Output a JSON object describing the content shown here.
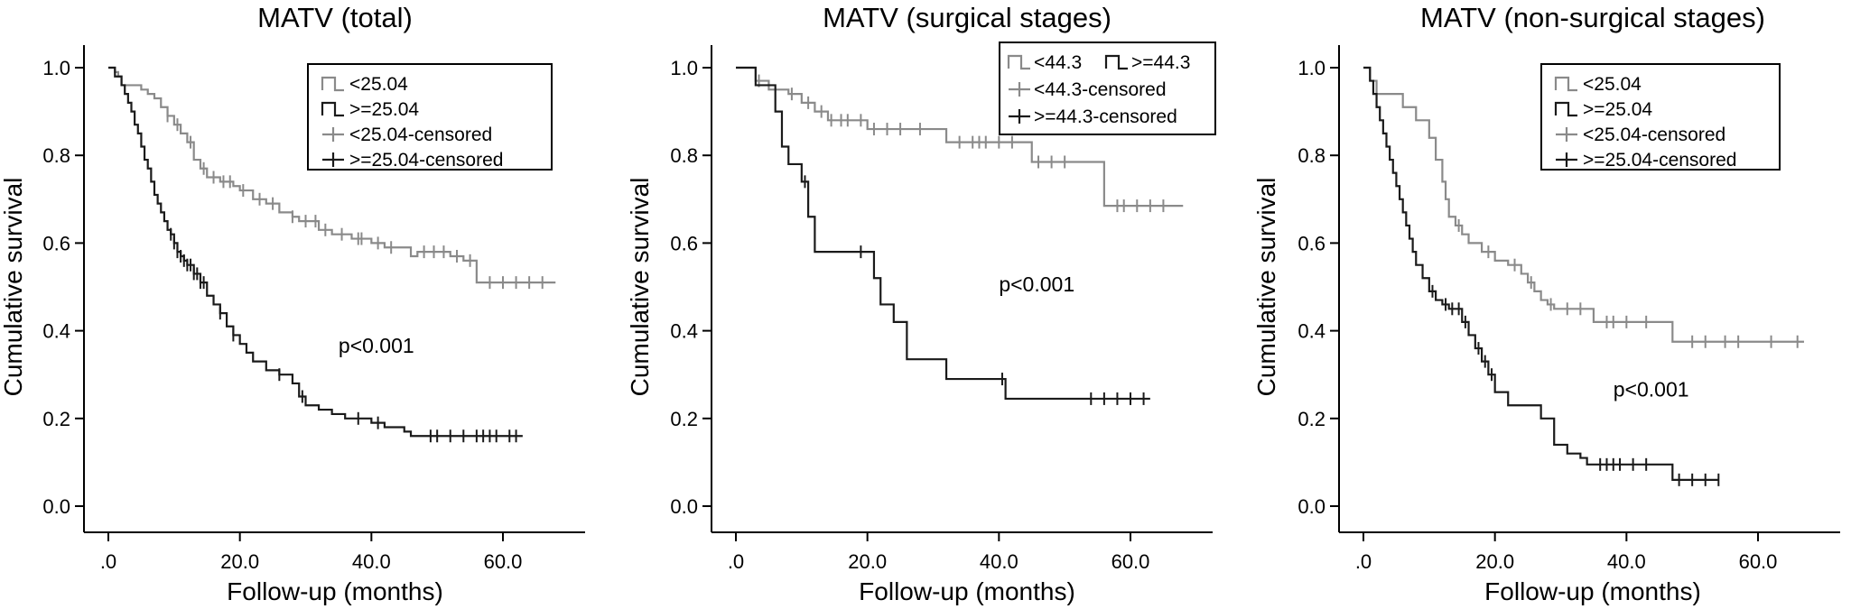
{
  "chart_data": [
    {
      "type": "line",
      "title": "MATV (total)",
      "xlabel": "Follow-up (months)",
      "ylabel": "Cumulative survival",
      "xlim": [
        0,
        70
      ],
      "ylim": [
        0,
        1.0
      ],
      "x_ticks": [
        0,
        20,
        40,
        60
      ],
      "x_tick_labels": [
        ".0",
        "20.0",
        "40.0",
        "60.0"
      ],
      "y_ticks": [
        0,
        0.2,
        0.4,
        0.6,
        0.8,
        1.0
      ],
      "y_tick_labels": [
        "0.0",
        "0.2",
        "0.4",
        "0.6",
        "0.8",
        "1.0"
      ],
      "grid": false,
      "legend_position": "top-right",
      "legend_layout": "list",
      "legend": [
        "<25.04",
        ">=25.04",
        "<25.04-censored",
        ">=25.04-censored"
      ],
      "annotation": "p<0.001",
      "annotation_pos": [
        35,
        0.35
      ],
      "series": [
        {
          "name": "<25.04",
          "color": "#8a8a8a",
          "x": [
            0,
            1,
            1.5,
            2,
            5,
            6,
            7,
            8,
            9,
            10,
            11,
            12,
            13,
            14,
            15,
            17,
            19,
            20,
            22,
            24,
            26,
            28,
            29,
            32,
            34,
            37,
            40,
            42,
            46,
            47,
            52,
            54,
            56,
            68
          ],
          "y": [
            1.0,
            0.99,
            0.98,
            0.96,
            0.95,
            0.94,
            0.93,
            0.91,
            0.89,
            0.87,
            0.85,
            0.83,
            0.79,
            0.77,
            0.75,
            0.74,
            0.73,
            0.72,
            0.7,
            0.69,
            0.67,
            0.66,
            0.65,
            0.63,
            0.62,
            0.61,
            0.6,
            0.59,
            0.57,
            0.58,
            0.57,
            0.56,
            0.51,
            0.51
          ],
          "censored_x": [
            9,
            10.5,
            12.5,
            14.5,
            16,
            17.5,
            18.5,
            20.5,
            23,
            25,
            28,
            30,
            31.5,
            33,
            35.5,
            38,
            38.5,
            41,
            43,
            48,
            49.5,
            51,
            53,
            55,
            58,
            60,
            62,
            64,
            66
          ]
        },
        {
          "name": ">=25.04",
          "color": "#1a1a1a",
          "x": [
            0,
            1,
            2,
            2.5,
            3,
            3.5,
            4,
            4.5,
            5,
            5.5,
            6,
            6.5,
            7,
            7.5,
            8,
            8.5,
            9,
            9.5,
            10,
            10.5,
            11,
            11.5,
            12,
            13,
            14,
            15,
            16,
            17,
            18,
            19,
            20,
            21,
            22,
            24,
            26,
            28,
            29,
            30,
            32,
            34,
            36,
            40,
            42,
            45,
            46,
            63
          ],
          "y": [
            1.0,
            0.98,
            0.96,
            0.94,
            0.92,
            0.9,
            0.87,
            0.85,
            0.82,
            0.79,
            0.77,
            0.74,
            0.71,
            0.69,
            0.67,
            0.65,
            0.63,
            0.62,
            0.6,
            0.58,
            0.57,
            0.56,
            0.55,
            0.53,
            0.51,
            0.48,
            0.46,
            0.44,
            0.41,
            0.39,
            0.37,
            0.35,
            0.33,
            0.31,
            0.3,
            0.28,
            0.25,
            0.23,
            0.22,
            0.21,
            0.2,
            0.19,
            0.18,
            0.17,
            0.16,
            0.16
          ],
          "censored_x": [
            9.5,
            10,
            10.5,
            11,
            11.5,
            12,
            12.5,
            13,
            13.5,
            14,
            14.5,
            17,
            19,
            26,
            29.5,
            38,
            41,
            49,
            50,
            52,
            54,
            56,
            57,
            58,
            59,
            61,
            62
          ]
        }
      ]
    },
    {
      "type": "line",
      "title": "MATV (surgical stages)",
      "xlabel": "Follow-up (months)",
      "ylabel": "Cumulative survival",
      "xlim": [
        0,
        70
      ],
      "ylim": [
        0,
        1.0
      ],
      "x_ticks": [
        0,
        20,
        40,
        60
      ],
      "x_tick_labels": [
        ".0",
        "20.0",
        "40.0",
        "60.0"
      ],
      "y_ticks": [
        0,
        0.2,
        0.4,
        0.6,
        0.8,
        1.0
      ],
      "y_tick_labels": [
        "0.0",
        "0.2",
        "0.4",
        "0.6",
        "0.8",
        "1.0"
      ],
      "grid": false,
      "legend_position": "top-right",
      "legend_layout": "compact",
      "legend": [
        "<44.3",
        ">=44.3",
        "<44.3-censored",
        ">=44.3-censored"
      ],
      "annotation": "p<0.001",
      "annotation_pos": [
        40,
        0.49
      ],
      "series": [
        {
          "name": "<44.3",
          "color": "#8a8a8a",
          "x": [
            0,
            3,
            5,
            8,
            10,
            12,
            14,
            20,
            32,
            45,
            56,
            68
          ],
          "y": [
            1.0,
            0.97,
            0.95,
            0.94,
            0.92,
            0.9,
            0.88,
            0.86,
            0.83,
            0.785,
            0.685,
            0.685
          ],
          "censored_x": [
            3.5,
            8.5,
            11,
            13,
            14.5,
            16,
            17,
            19,
            21,
            23,
            25,
            28,
            34,
            36,
            37,
            38,
            40,
            42,
            46,
            48,
            50,
            58,
            59,
            61,
            63,
            65
          ]
        },
        {
          "name": ">=44.3",
          "color": "#1a1a1a",
          "x": [
            0,
            3,
            6,
            7,
            8,
            10,
            11,
            12,
            21,
            22,
            24,
            26,
            32,
            41,
            63
          ],
          "y": [
            1.0,
            0.96,
            0.9,
            0.82,
            0.78,
            0.74,
            0.66,
            0.58,
            0.52,
            0.46,
            0.42,
            0.335,
            0.29,
            0.245,
            0.245
          ],
          "censored_x": [
            10.5,
            19,
            40.5,
            54,
            56,
            58,
            60,
            62
          ]
        }
      ]
    },
    {
      "type": "line",
      "title": "MATV (non-surgical stages)",
      "xlabel": "Follow-up (months)",
      "ylabel": "Cumulative survival",
      "xlim": [
        0,
        70
      ],
      "ylim": [
        0,
        1.0
      ],
      "x_ticks": [
        0,
        20,
        40,
        60
      ],
      "x_tick_labels": [
        ".0",
        "20.0",
        "40.0",
        "60.0"
      ],
      "y_ticks": [
        0,
        0.2,
        0.4,
        0.6,
        0.8,
        1.0
      ],
      "y_tick_labels": [
        "0.0",
        "0.2",
        "0.4",
        "0.6",
        "0.8",
        "1.0"
      ],
      "grid": false,
      "legend_position": "top-right",
      "legend_layout": "list",
      "legend": [
        "<25.04",
        ">=25.04",
        "<25.04-censored",
        ">=25.04-censored"
      ],
      "annotation": "p<0.001",
      "annotation_pos": [
        38,
        0.25
      ],
      "series": [
        {
          "name": "<25.04",
          "color": "#8a8a8a",
          "x": [
            0,
            1,
            2,
            6,
            8,
            10,
            11,
            12,
            12.5,
            13,
            14,
            15,
            16,
            18,
            20,
            22,
            24,
            25,
            26,
            27,
            28,
            29,
            30,
            35,
            42,
            47,
            67
          ],
          "y": [
            1.0,
            0.97,
            0.94,
            0.91,
            0.88,
            0.84,
            0.79,
            0.74,
            0.7,
            0.66,
            0.64,
            0.62,
            0.6,
            0.58,
            0.56,
            0.55,
            0.53,
            0.51,
            0.49,
            0.47,
            0.46,
            0.45,
            0.45,
            0.42,
            0.42,
            0.375,
            0.375
          ],
          "censored_x": [
            14.5,
            19,
            23,
            25.5,
            28.5,
            31,
            33,
            37,
            38,
            40,
            43,
            50,
            52,
            55,
            57,
            62,
            66
          ]
        },
        {
          "name": ">=25.04",
          "color": "#1a1a1a",
          "x": [
            0,
            1,
            1.5,
            2,
            2.5,
            3,
            3.5,
            4,
            4.5,
            5,
            5.5,
            6,
            6.5,
            7,
            7.5,
            8,
            9,
            10,
            11,
            12,
            13,
            15,
            16,
            17,
            18,
            19,
            20,
            22,
            27,
            29,
            31,
            33,
            34,
            40,
            47,
            54
          ],
          "y": [
            1.0,
            0.97,
            0.94,
            0.91,
            0.88,
            0.85,
            0.82,
            0.79,
            0.76,
            0.73,
            0.7,
            0.67,
            0.64,
            0.61,
            0.58,
            0.55,
            0.52,
            0.49,
            0.47,
            0.46,
            0.45,
            0.42,
            0.39,
            0.36,
            0.33,
            0.3,
            0.26,
            0.23,
            0.2,
            0.14,
            0.12,
            0.11,
            0.095,
            0.095,
            0.06,
            0.06
          ],
          "censored_x": [
            10.5,
            12.5,
            13.5,
            14.5,
            15.5,
            17.5,
            18.5,
            19.5,
            36,
            37,
            38,
            39,
            41,
            43,
            48,
            50,
            52,
            54
          ]
        }
      ]
    }
  ]
}
